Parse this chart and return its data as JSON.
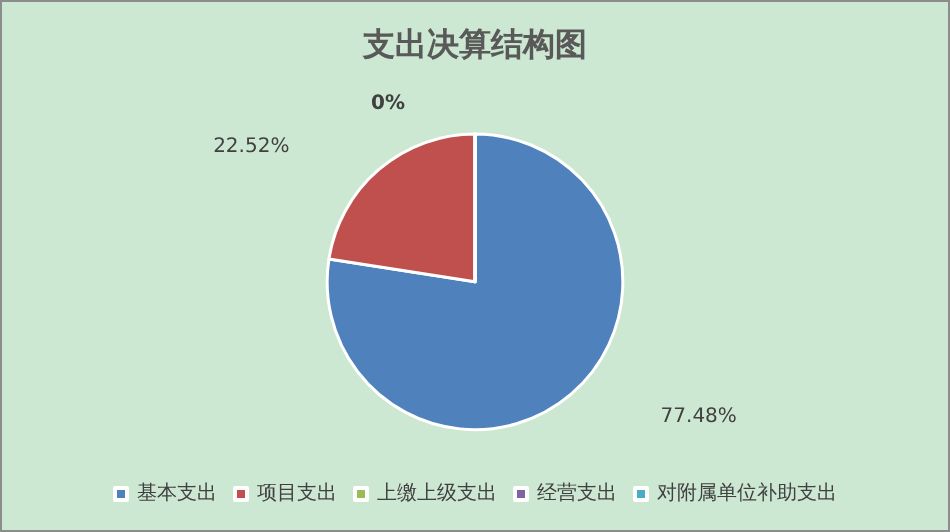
{
  "chart_data": {
    "type": "pie",
    "title": "支出决算结构图",
    "categories": [
      "基本支出",
      "项目支出",
      "上缴上级支出",
      "经营支出",
      "对附属单位补助支出"
    ],
    "values": [
      77.48,
      22.52,
      0,
      0,
      0
    ],
    "colors": [
      "#4f81bd",
      "#c0504d",
      "#9bbb59",
      "#8064a2",
      "#4bacc6"
    ],
    "value_labels": [
      "77.48%",
      "22.52%",
      "0%",
      null,
      null
    ],
    "legend": "bottom"
  }
}
